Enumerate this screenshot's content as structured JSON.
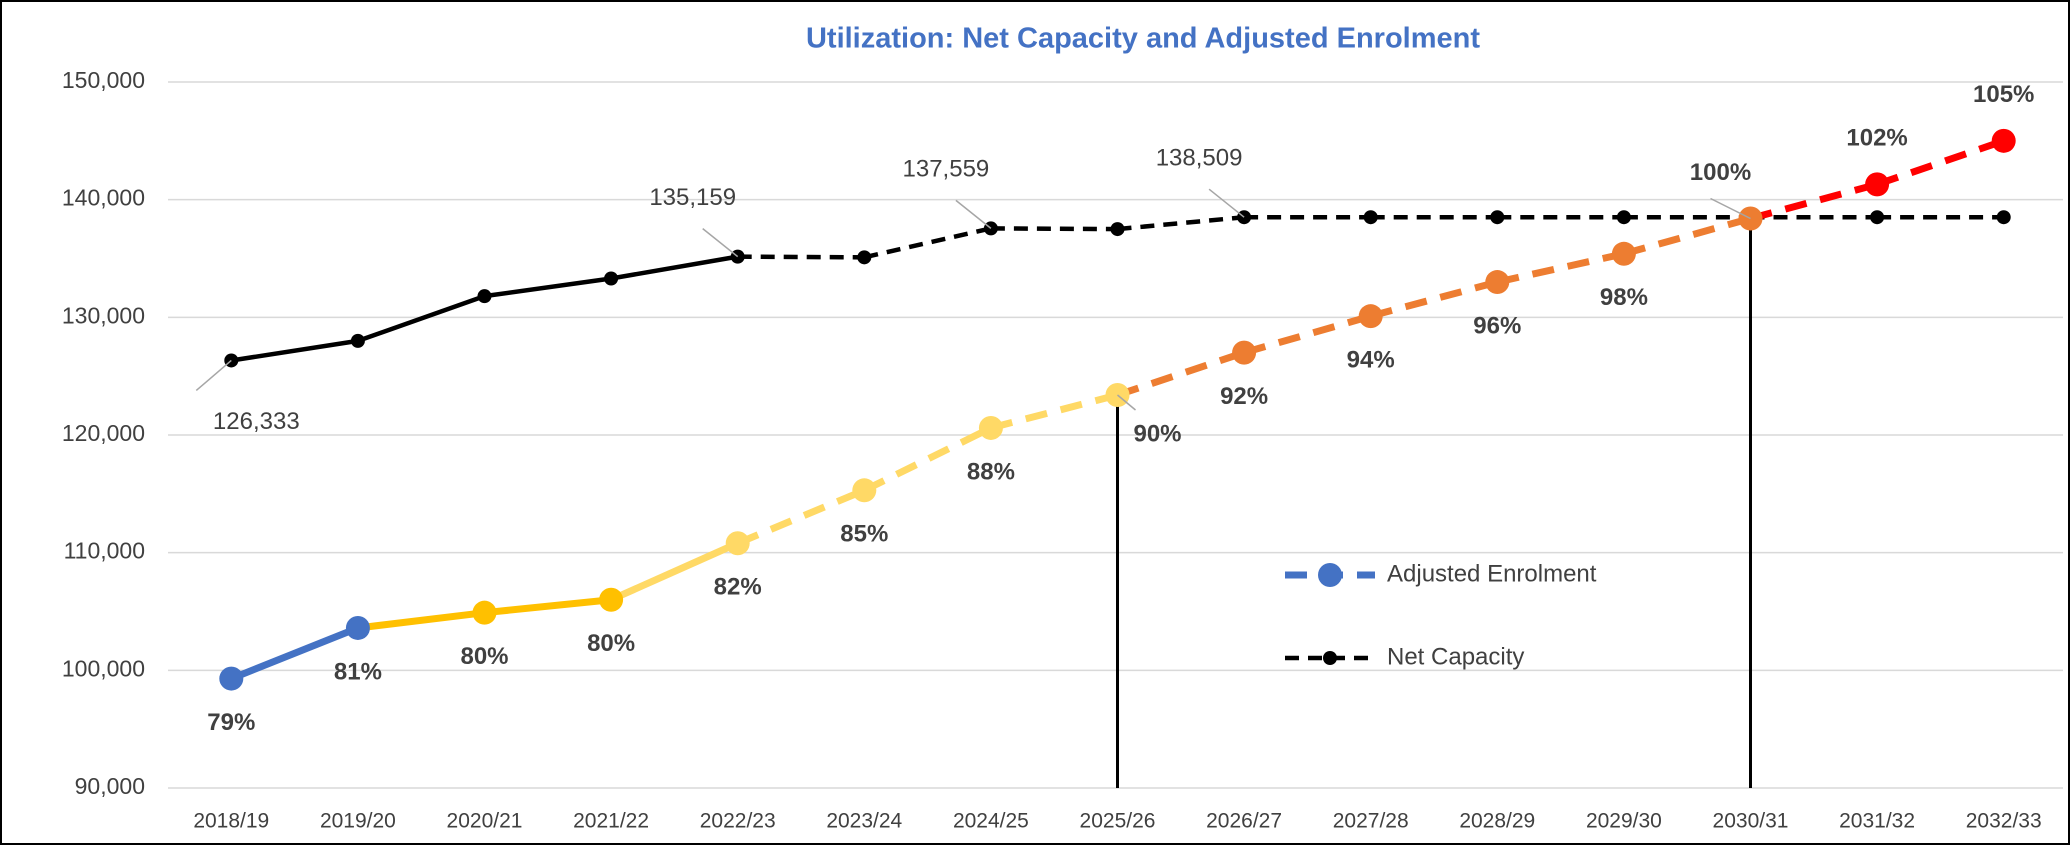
{
  "chart_data": {
    "type": "line",
    "title": "Utilization: Net Capacity and Adjusted Enrolment",
    "categories": [
      "2018/19",
      "2019/20",
      "2020/21",
      "2021/22",
      "2022/23",
      "2023/24",
      "2024/25",
      "2025/26",
      "2026/27",
      "2027/28",
      "2028/29",
      "2029/30",
      "2030/31",
      "2031/32",
      "2032/33"
    ],
    "projection_start": "2022/23",
    "vertical_lines_at": [
      "2025/26",
      "2030/31"
    ],
    "series": [
      {
        "name": "Net Capacity",
        "color": "#000000",
        "values": [
          126333,
          128000,
          131800,
          133300,
          135159,
          135100,
          137559,
          137500,
          138509,
          138509,
          138509,
          138509,
          138509,
          138509,
          138509
        ],
        "value_labels": [
          "126,333",
          null,
          null,
          null,
          "135,159",
          null,
          "137,559",
          null,
          "138,509",
          null,
          null,
          null,
          null,
          null,
          null
        ]
      },
      {
        "name": "Adjusted Enrolment",
        "color": "#4472c4",
        "values": [
          99300,
          103600,
          104900,
          106000,
          110800,
          115300,
          120600,
          123400,
          127000,
          130100,
          133000,
          135400,
          138400,
          141300,
          145000
        ],
        "point_colors": [
          "#4472c4",
          "#4472c4",
          "#ffc000",
          "#ffc000",
          "#ffd966",
          "#ffd966",
          "#ffd966",
          "#ffd966",
          "#ed7d31",
          "#ed7d31",
          "#ed7d31",
          "#ed7d31",
          "#ed7d31",
          "#ff0000",
          "#ff0000"
        ],
        "segment_colors": [
          "#4472c4",
          "#ffc000",
          "#ffc000",
          "#ffd966",
          "#ffd966",
          "#ffd966",
          "#ffd966",
          "#ed7d31",
          "#ed7d31",
          "#ed7d31",
          "#ed7d31",
          "#ed7d31",
          "#ff0000",
          "#ff0000"
        ],
        "utilization_labels": [
          "79%",
          "81%",
          "80%",
          "80%",
          "82%",
          "85%",
          "88%",
          "90%",
          "92%",
          "94%",
          "96%",
          "98%",
          "100%",
          "102%",
          "105%"
        ]
      }
    ],
    "ylim": [
      90000,
      150000
    ],
    "yticks": [
      {
        "value": 90000,
        "label": "90,000"
      },
      {
        "value": 100000,
        "label": "100,000"
      },
      {
        "value": 110000,
        "label": "110,000"
      },
      {
        "value": 120000,
        "label": "120,000"
      },
      {
        "value": 130000,
        "label": "130,000"
      },
      {
        "value": 140000,
        "label": "140,000"
      },
      {
        "value": 150000,
        "label": "150,000"
      }
    ],
    "grid": true,
    "legend": "center right"
  }
}
